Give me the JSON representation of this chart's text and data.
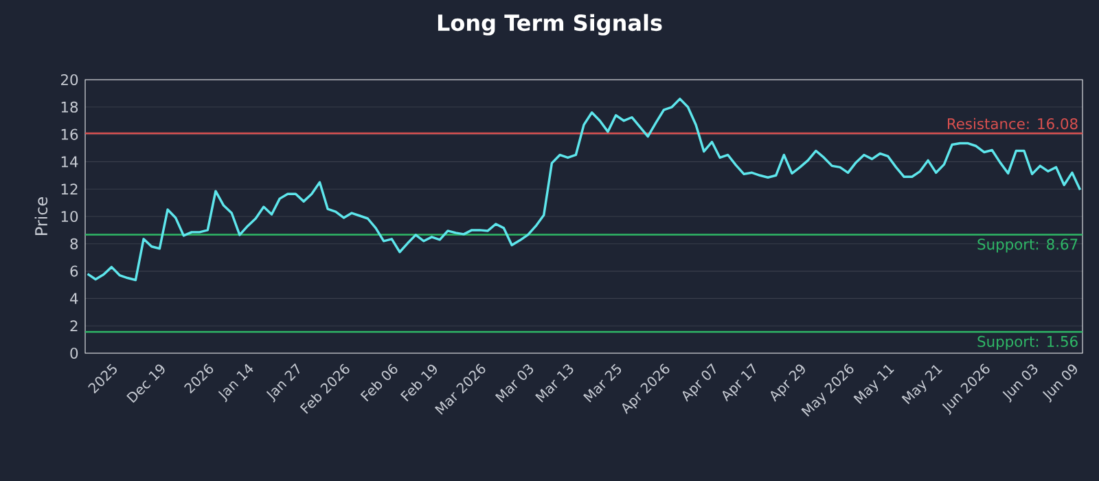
{
  "chart_data": {
    "type": "line",
    "title": "Long Term Signals",
    "ylabel": "Price",
    "categories": [
      null,
      null,
      null,
      "2025",
      null,
      null,
      null,
      null,
      null,
      "Dec 19",
      null,
      null,
      null,
      null,
      null,
      "2026",
      null,
      null,
      null,
      null,
      "Jan 14",
      null,
      null,
      null,
      null,
      null,
      "Jan 27",
      null,
      null,
      null,
      null,
      null,
      "Feb 2026",
      null,
      null,
      null,
      null,
      null,
      "Feb 06",
      null,
      null,
      null,
      null,
      "Feb 19",
      null,
      null,
      null,
      null,
      null,
      "Mar 2026",
      null,
      null,
      null,
      null,
      null,
      "Mar 03",
      null,
      null,
      null,
      null,
      "Mar 13",
      null,
      null,
      null,
      null,
      null,
      "Mar 25",
      null,
      null,
      null,
      null,
      null,
      "Apr 2026",
      null,
      null,
      null,
      null,
      null,
      "Apr 07",
      null,
      null,
      null,
      null,
      "Apr 17",
      null,
      null,
      null,
      null,
      null,
      "Apr 29",
      null,
      null,
      null,
      null,
      null,
      "May 2026",
      null,
      null,
      null,
      null,
      "May 11",
      null,
      null,
      null,
      null,
      null,
      "May 21",
      null,
      null,
      null,
      null,
      null,
      "Jun 2026",
      null,
      null,
      null,
      null,
      null,
      "Jun 03",
      null,
      null,
      null,
      null,
      "Jun 09",
      null
    ],
    "series": [
      {
        "color": "#5ee6ec",
        "values": [
          5.8,
          5.4,
          5.75,
          6.3,
          5.7,
          5.5,
          5.35,
          8.35,
          7.8,
          7.65,
          10.5,
          9.9,
          8.6,
          8.85,
          8.85,
          9.0,
          11.85,
          10.8,
          10.25,
          8.65,
          9.3,
          9.85,
          10.7,
          10.15,
          11.3,
          11.65,
          11.65,
          11.1,
          11.65,
          12.5,
          10.55,
          10.35,
          9.9,
          10.25,
          10.05,
          9.85,
          9.15,
          8.2,
          8.35,
          7.4,
          8.05,
          8.65,
          8.2,
          8.5,
          8.3,
          8.95,
          8.8,
          8.7,
          9.0,
          9.0,
          8.95,
          9.45,
          9.15,
          7.9,
          8.25,
          8.65,
          9.3,
          10.1,
          13.9,
          14.5,
          14.3,
          14.5,
          16.7,
          17.6,
          17.0,
          16.2,
          17.4,
          17.0,
          17.25,
          16.55,
          15.85,
          16.85,
          17.8,
          18.0,
          18.6,
          18.0,
          16.7,
          14.75,
          15.45,
          14.3,
          14.5,
          13.75,
          13.1,
          13.2,
          13.0,
          12.85,
          13.0,
          14.5,
          13.15,
          13.6,
          14.1,
          14.8,
          14.3,
          13.7,
          13.6,
          13.2,
          13.95,
          14.5,
          14.2,
          14.6,
          14.4,
          13.6,
          12.9,
          12.9,
          13.3,
          14.1,
          13.2,
          13.8,
          15.25,
          15.35,
          15.35,
          15.15,
          14.7,
          14.85,
          13.95,
          13.15,
          14.8,
          14.8,
          13.1,
          13.7,
          13.3,
          13.6,
          12.3,
          13.2,
          11.95
        ]
      }
    ],
    "ylim": [
      0,
      20
    ],
    "yticks": [
      0,
      2,
      4,
      6,
      8,
      10,
      12,
      14,
      16,
      18,
      20
    ],
    "grid": "y",
    "ref_lines": [
      {
        "axis": "y",
        "value": 16.08,
        "label": "Resistance: 16.08",
        "color": "#d9504f"
      },
      {
        "axis": "y",
        "value": 8.67,
        "label": "Support: 8.67",
        "color": "#2fb867"
      },
      {
        "axis": "y",
        "value": 1.56,
        "label": "Support: 1.56",
        "color": "#2fb867"
      }
    ]
  }
}
